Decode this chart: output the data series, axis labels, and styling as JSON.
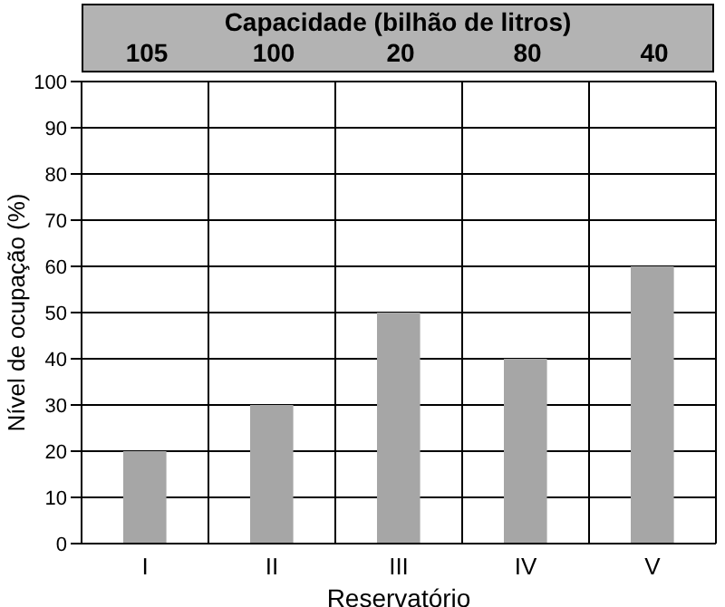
{
  "chart_data": {
    "type": "bar",
    "x2label": "Capacidade (bilhão de litros)",
    "categories": [
      "I",
      "II",
      "III",
      "IV",
      "V"
    ],
    "values": [
      20,
      30,
      50,
      40,
      60
    ],
    "color": "#a6a6a6",
    "ylim": [
      0,
      100
    ],
    "yticks": [
      0,
      10,
      20,
      30,
      40,
      50,
      60,
      70,
      80,
      90,
      100
    ],
    "grid": true,
    "xlabel": "Reservatório",
    "ylabel": "Nível de ocupação (%)",
    "annotations": [
      "105",
      "100",
      "20",
      "80",
      "40"
    ]
  }
}
